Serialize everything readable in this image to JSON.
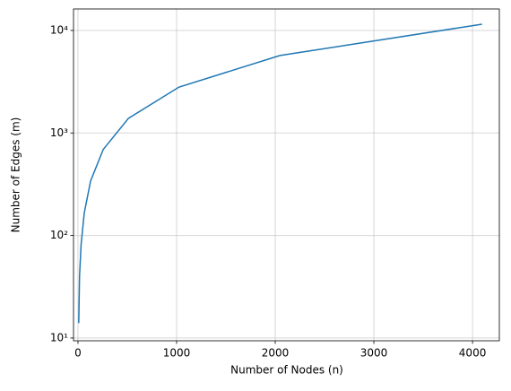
{
  "chart_data": {
    "type": "line",
    "x_label": "Number of Nodes (n)",
    "y_label": "Number of Edges (m)",
    "x": [
      8,
      16,
      32,
      64,
      128,
      256,
      512,
      1024,
      2048,
      4096
    ],
    "series": [
      {
        "color": "#1f77b4",
        "values": [
          14,
          40,
          82,
          166,
          340,
          690,
          1390,
          2800,
          5700,
          11500
        ]
      }
    ],
    "xlim": [
      -45,
      4272
    ],
    "xticks": [
      0,
      1000,
      2000,
      3000,
      4000
    ],
    "ylim": [
      9.4,
      16200
    ],
    "y_scale": "log",
    "yticks": [
      {
        "value": 10,
        "label": "10¹"
      },
      {
        "value": 100,
        "label": "10²"
      },
      {
        "value": 1000,
        "label": "10³"
      },
      {
        "value": 10000,
        "label": "10⁴"
      }
    ],
    "grid": true
  }
}
